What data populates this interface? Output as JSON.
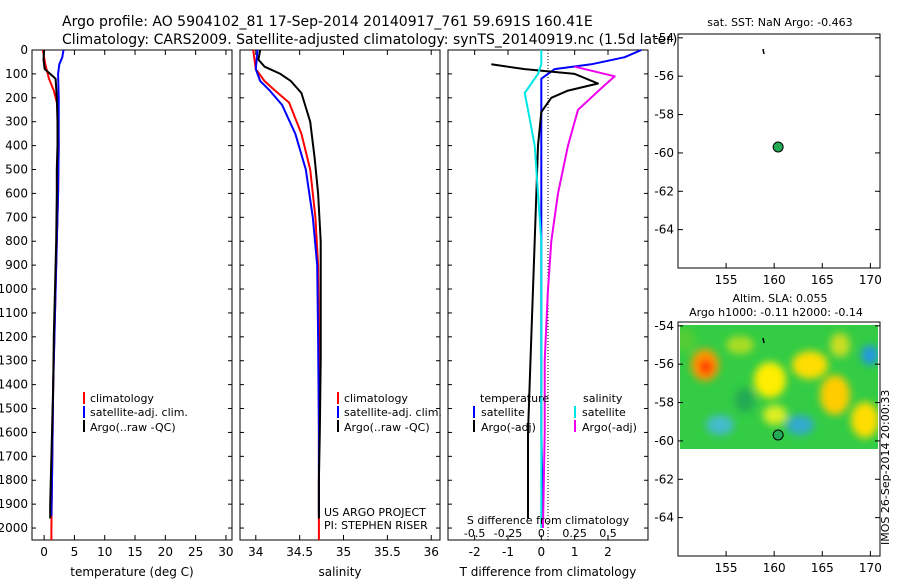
{
  "header": {
    "line1": "Argo profile: AO 5904102_81 17-Sep-2014 20140917_761 59.691S 160.41E",
    "line2": "Climatology: CARS2009. Satellite-adjusted climatology: synTS_20140919.nc (1.5d later)"
  },
  "side_label": "IMOS 26-Sep-2014 20:00:33",
  "chart_data": [
    {
      "type": "line",
      "name": "temperature-panel",
      "xlabel": "temperature (deg C)",
      "xticks": [
        "0",
        "5",
        "10",
        "15",
        "20",
        "25",
        "30"
      ],
      "xlim": [
        -2,
        31
      ],
      "ylim": [
        0,
        2050
      ],
      "yticks": [
        "0",
        "100",
        "200",
        "300",
        "400",
        "500",
        "600",
        "700",
        "800",
        "900",
        "1000",
        "1100",
        "1200",
        "1300",
        "1400",
        "1500",
        "1600",
        "1700",
        "1800",
        "1900",
        "2000"
      ],
      "legend": [
        "climatology",
        "satellite-adj. clim.",
        "Argo(..raw -QC)"
      ],
      "series": [
        {
          "name": "climatology",
          "color": "#ff0000",
          "points": [
            [
              -0.2,
              0
            ],
            [
              0.2,
              60
            ],
            [
              0.8,
              120
            ],
            [
              1.6,
              170
            ],
            [
              2.2,
              230
            ],
            [
              2.4,
              400
            ],
            [
              2.3,
              600
            ],
            [
              2.1,
              800
            ],
            [
              1.9,
              1000
            ],
            [
              1.7,
              1200
            ],
            [
              1.5,
              1400
            ],
            [
              1.4,
              1600
            ],
            [
              1.3,
              1800
            ],
            [
              1.2,
              2000
            ],
            [
              1.2,
              2050
            ]
          ]
        },
        {
          "name": "satellite-adj. clim.",
          "color": "#0000ff",
          "points": [
            [
              3.2,
              0
            ],
            [
              3.0,
              30
            ],
            [
              2.5,
              60
            ],
            [
              2.3,
              100
            ],
            [
              2.4,
              200
            ],
            [
              2.4,
              400
            ],
            [
              2.3,
              600
            ],
            [
              2.1,
              800
            ],
            [
              1.9,
              1000
            ],
            [
              1.7,
              1200
            ],
            [
              1.5,
              1400
            ],
            [
              1.4,
              1600
            ],
            [
              1.3,
              1800
            ],
            [
              1.2,
              1950
            ]
          ]
        },
        {
          "name": "Argo(..raw -QC)",
          "color": "#000000",
          "points": [
            [
              0.0,
              0
            ],
            [
              -0.1,
              40
            ],
            [
              0.1,
              80
            ],
            [
              1.0,
              100
            ],
            [
              1.9,
              120
            ],
            [
              2.0,
              160
            ],
            [
              2.1,
              200
            ],
            [
              2.2,
              300
            ],
            [
              2.2,
              400
            ],
            [
              2.1,
              500
            ],
            [
              2.1,
              600
            ],
            [
              2.0,
              800
            ],
            [
              1.8,
              1000
            ],
            [
              1.6,
              1200
            ],
            [
              1.5,
              1400
            ],
            [
              1.3,
              1600
            ],
            [
              1.1,
              1800
            ],
            [
              1.0,
              1900
            ],
            [
              1.0,
              1960
            ]
          ]
        }
      ]
    },
    {
      "type": "line",
      "name": "salinity-panel",
      "xlabel": "salinity",
      "xticks": [
        "34",
        "34.5",
        "35",
        "35.5",
        "36"
      ],
      "xlim": [
        33.82,
        36.1
      ],
      "ylim": [
        0,
        2050
      ],
      "legend": [
        "climatology",
        "satellite-adj. clim.",
        "Argo(..raw -QC)"
      ],
      "annotations": [
        "US ARGO PROJECT",
        "PI: STEPHEN RISER"
      ],
      "series": [
        {
          "name": "climatology",
          "color": "#ff0000",
          "points": [
            [
              33.97,
              0
            ],
            [
              34.0,
              80
            ],
            [
              34.1,
              130
            ],
            [
              34.22,
              170
            ],
            [
              34.38,
              220
            ],
            [
              34.52,
              350
            ],
            [
              34.62,
              500
            ],
            [
              34.68,
              700
            ],
            [
              34.71,
              900
            ],
            [
              34.72,
              1200
            ],
            [
              34.72,
              1600
            ],
            [
              34.72,
              2050
            ]
          ]
        },
        {
          "name": "satellite-adj. clim.",
          "color": "#0000ff",
          "points": [
            [
              34.02,
              0
            ],
            [
              34.0,
              80
            ],
            [
              34.05,
              130
            ],
            [
              34.16,
              170
            ],
            [
              34.3,
              230
            ],
            [
              34.45,
              350
            ],
            [
              34.57,
              500
            ],
            [
              34.65,
              700
            ],
            [
              34.7,
              900
            ],
            [
              34.71,
              1200
            ],
            [
              34.72,
              1600
            ],
            [
              34.72,
              1950
            ]
          ]
        },
        {
          "name": "Argo(..raw -QC)",
          "color": "#000000",
          "points": [
            [
              34.05,
              0
            ],
            [
              34.03,
              40
            ],
            [
              34.1,
              70
            ],
            [
              34.28,
              100
            ],
            [
              34.4,
              130
            ],
            [
              34.52,
              180
            ],
            [
              34.62,
              300
            ],
            [
              34.67,
              450
            ],
            [
              34.71,
              600
            ],
            [
              34.74,
              800
            ],
            [
              34.74,
              1000
            ],
            [
              34.74,
              1300
            ],
            [
              34.73,
              1600
            ],
            [
              34.72,
              1800
            ],
            [
              34.72,
              1960
            ]
          ]
        }
      ]
    },
    {
      "type": "line",
      "name": "difference-panel",
      "xlabel": "T difference from climatology",
      "xlabel_top": "S difference from climatology",
      "xticks": [
        "-2",
        "-1",
        "0",
        "1",
        "2"
      ],
      "xticks_top": [
        "-0.5",
        "-0.25",
        "0",
        "0.25",
        "0.5"
      ],
      "xlim": [
        -2.8,
        3.2
      ],
      "ylim": [
        0,
        2050
      ],
      "legend_headers": [
        "temperature",
        "salinity"
      ],
      "legend": [
        "satellite",
        "Argo(-adj)",
        "satellite",
        "Argo(-adj)"
      ],
      "series": [
        {
          "name": "T satellite",
          "color": "#0000ff",
          "points": [
            [
              3.0,
              0
            ],
            [
              2.5,
              30
            ],
            [
              1.5,
              60
            ],
            [
              0.4,
              80
            ],
            [
              0.0,
              120
            ],
            [
              0.0,
              400
            ],
            [
              0.0,
              800
            ],
            [
              0.0,
              1200
            ],
            [
              0.0,
              1600
            ],
            [
              0.05,
              2000
            ]
          ]
        },
        {
          "name": "T Argo(-adj)",
          "color": "#000000",
          "points": [
            [
              -1.5,
              60
            ],
            [
              -0.5,
              80
            ],
            [
              1.0,
              100
            ],
            [
              1.7,
              140
            ],
            [
              0.8,
              170
            ],
            [
              0.3,
              200
            ],
            [
              0.0,
              260
            ],
            [
              -0.1,
              400
            ],
            [
              -0.2,
              800
            ],
            [
              -0.3,
              1200
            ],
            [
              -0.4,
              1600
            ],
            [
              -0.4,
              1960
            ]
          ]
        },
        {
          "name": "S satellite",
          "color": "#00e5e5",
          "points": [
            [
              0.0,
              0
            ],
            [
              0.0,
              60
            ],
            [
              -0.1,
              100
            ],
            [
              -0.5,
              180
            ],
            [
              -0.4,
              250
            ],
            [
              -0.2,
              400
            ],
            [
              -0.1,
              600
            ],
            [
              0.0,
              800
            ],
            [
              0.0,
              1200
            ],
            [
              0.0,
              2000
            ]
          ]
        },
        {
          "name": "S Argo(-adj)",
          "color": "#ee00ee",
          "points": [
            [
              1.0,
              70
            ],
            [
              2.2,
              110
            ],
            [
              1.8,
              160
            ],
            [
              1.1,
              250
            ],
            [
              0.8,
              400
            ],
            [
              0.5,
              600
            ],
            [
              0.3,
              800
            ],
            [
              0.2,
              1000
            ],
            [
              0.1,
              1300
            ],
            [
              0.1,
              1600
            ],
            [
              0.05,
              2000
            ]
          ]
        }
      ]
    },
    {
      "type": "scatter",
      "name": "sst-map",
      "title": "sat. SST: NaN Argo: -0.463",
      "xticks": [
        "155",
        "160",
        "165",
        "170"
      ],
      "yticks": [
        "-54",
        "-56",
        "-58",
        "-60",
        "-62",
        "-64"
      ],
      "xlim": [
        150,
        171
      ],
      "ylim": [
        -66,
        -53.8
      ],
      "points": [
        [
          160.41,
          -59.691
        ]
      ]
    },
    {
      "type": "heatmap",
      "name": "sla-map",
      "title": "Altim. SLA: 0.055",
      "subtitle": "Argo h1000: -0.11 h2000: -0.14",
      "xticks": [
        "155",
        "160",
        "165",
        "170"
      ],
      "yticks": [
        "-54",
        "-56",
        "-58",
        "-60",
        "-62",
        "-64"
      ],
      "xlim": [
        150,
        171
      ],
      "ylim": [
        -66,
        -53.8
      ],
      "points": [
        [
          160.41,
          -59.691
        ]
      ]
    }
  ]
}
